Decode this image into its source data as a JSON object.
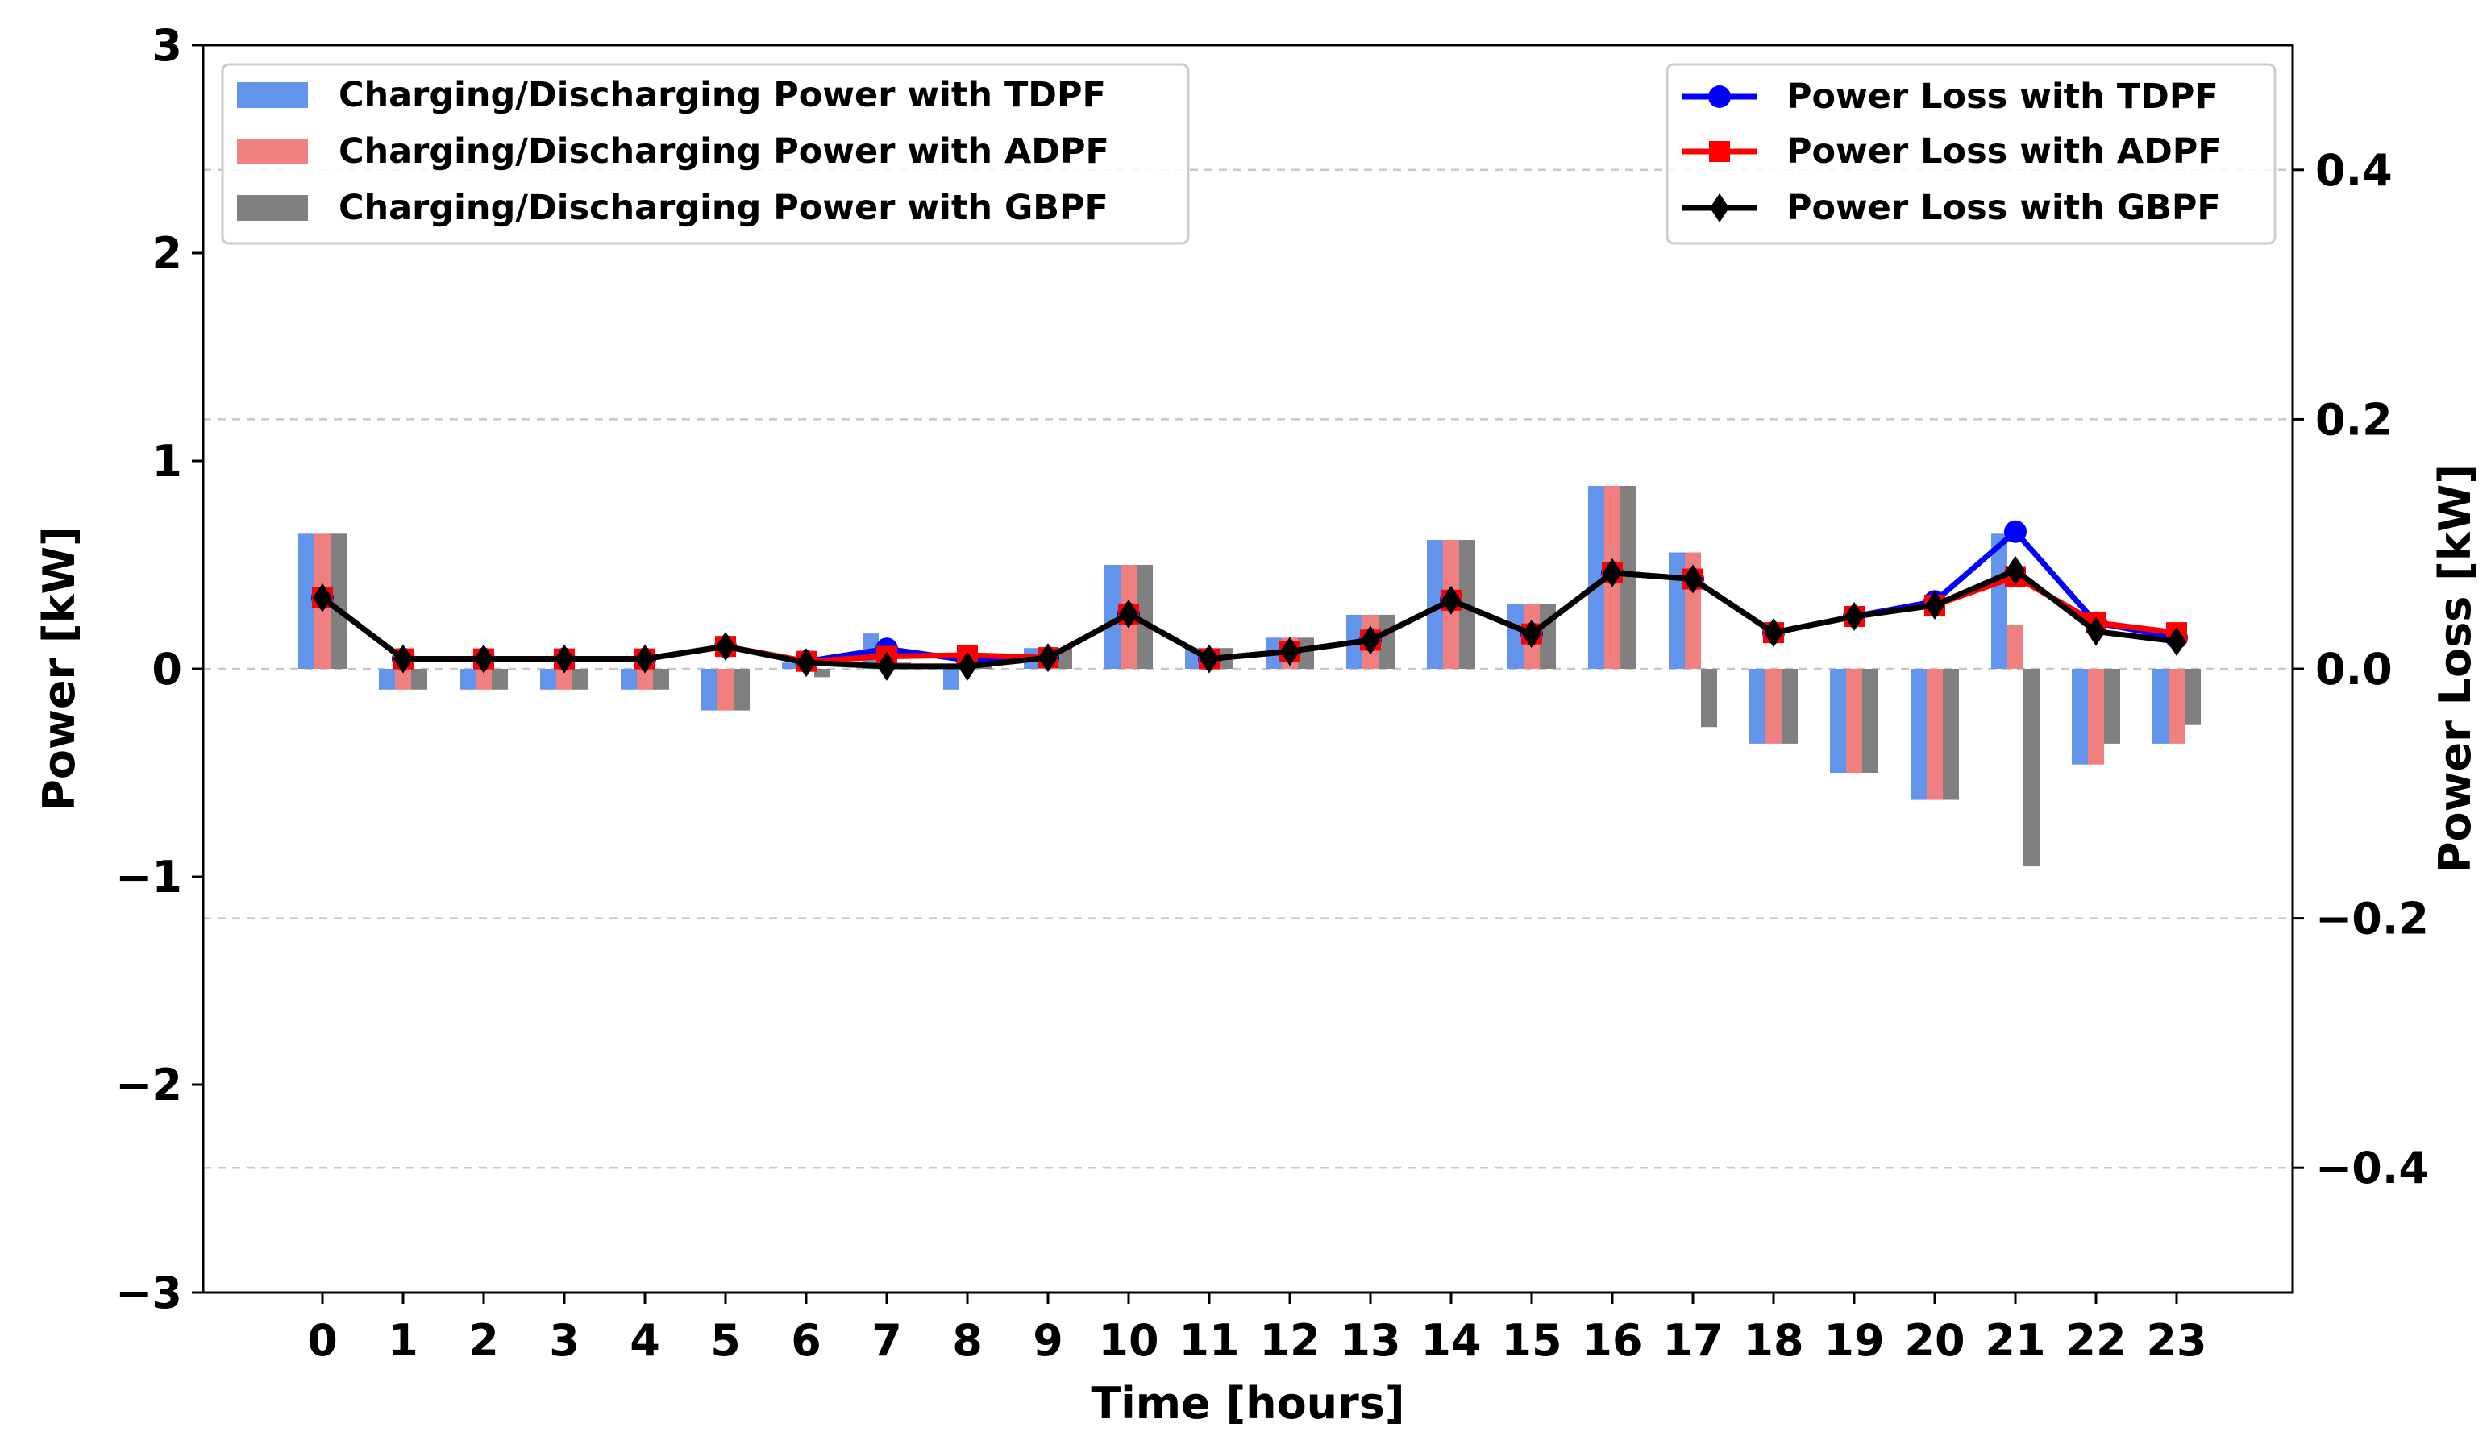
{
  "chart_data": {
    "type": "bar+line",
    "x": [
      0,
      1,
      2,
      3,
      4,
      5,
      6,
      7,
      8,
      9,
      10,
      11,
      12,
      13,
      14,
      15,
      16,
      17,
      18,
      19,
      20,
      21,
      22,
      23
    ],
    "xlabel": "Time [hours]",
    "ylabel": "Power [kW]",
    "y2label": "Power Loss [kW]",
    "ylim": [
      -3,
      3
    ],
    "y2lim": [
      -0.5,
      0.5
    ],
    "yticks": [
      "−3",
      "−2",
      "−1",
      "0",
      "1",
      "2",
      "3"
    ],
    "y2ticks": [
      "−0.4",
      "−0.2",
      "0.0",
      "0.2",
      "0.4"
    ],
    "grid": "horizontal dashed (right axis)",
    "bar_series": [
      {
        "name": "Charging/Discharging Power with TDPF",
        "color": "#6495ED",
        "values": [
          0.65,
          -0.1,
          -0.1,
          -0.1,
          -0.1,
          -0.2,
          0.03,
          0.17,
          -0.1,
          0.1,
          0.5,
          0.1,
          0.15,
          0.26,
          0.62,
          0.31,
          0.88,
          0.56,
          -0.36,
          -0.5,
          -0.63,
          0.65,
          -0.46,
          -0.36
        ]
      },
      {
        "name": "Charging/Discharging Power with ADPF",
        "color": "#F08080",
        "values": [
          0.65,
          -0.1,
          -0.1,
          -0.1,
          -0.1,
          -0.2,
          0.03,
          0.06,
          0.05,
          0.1,
          0.5,
          0.1,
          0.15,
          0.26,
          0.62,
          0.31,
          0.88,
          0.56,
          -0.36,
          -0.5,
          -0.63,
          0.21,
          -0.46,
          -0.36
        ]
      },
      {
        "name": "Charging/Discharging Power with GBPF",
        "color": "#808080",
        "values": [
          0.65,
          -0.1,
          -0.1,
          -0.1,
          -0.1,
          -0.2,
          -0.04,
          0.03,
          0.03,
          0.1,
          0.5,
          0.1,
          0.15,
          0.26,
          0.62,
          0.31,
          0.88,
          -0.28,
          -0.36,
          -0.5,
          -0.63,
          -0.95,
          -0.36,
          -0.27
        ]
      }
    ],
    "line_series": [
      {
        "name": "Power Loss with TDPF",
        "color": "#0000FF",
        "marker": "circle",
        "values": [
          0.057,
          0.008,
          0.008,
          0.008,
          0.008,
          0.018,
          0.006,
          0.016,
          0.007,
          0.009,
          0.044,
          0.008,
          0.014,
          0.023,
          0.055,
          0.028,
          0.077,
          0.072,
          0.029,
          0.042,
          0.054,
          0.11,
          0.037,
          0.025
        ]
      },
      {
        "name": "Power Loss with ADPF",
        "color": "#FF0000",
        "marker": "square",
        "values": [
          0.057,
          0.008,
          0.008,
          0.008,
          0.008,
          0.018,
          0.006,
          0.01,
          0.011,
          0.009,
          0.044,
          0.008,
          0.014,
          0.023,
          0.055,
          0.028,
          0.077,
          0.072,
          0.029,
          0.042,
          0.051,
          0.074,
          0.037,
          0.029
        ]
      },
      {
        "name": "Power Loss with GBPF",
        "color": "#000000",
        "marker": "diamond",
        "values": [
          0.057,
          0.008,
          0.008,
          0.008,
          0.008,
          0.018,
          0.005,
          0.002,
          0.002,
          0.009,
          0.044,
          0.008,
          0.014,
          0.023,
          0.055,
          0.028,
          0.077,
          0.072,
          0.029,
          0.042,
          0.051,
          0.079,
          0.03,
          0.022
        ]
      }
    ],
    "legend_left_position": "top-left",
    "legend_right_position": "top-right"
  }
}
